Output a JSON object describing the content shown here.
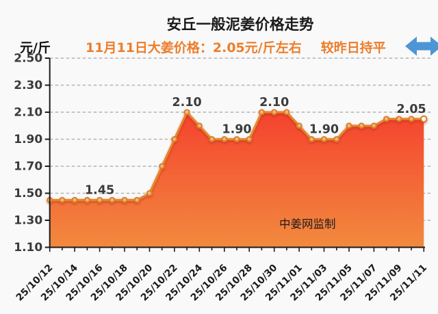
{
  "header": {
    "title": "安丘一般泥姜价格走势",
    "unit_label": "元/斤",
    "subtitle_price": "11月11日大姜价格：2.05元/斤左右",
    "subtitle_trend": "较昨日持平",
    "trend_direction": "flat"
  },
  "watermark": "中姜网监制",
  "colors": {
    "background": "#f8f9f8",
    "subtitle_orange": "#ed7d2b",
    "arrow_blue": "#4e95d5",
    "line_orange": "#e8862c",
    "marker_ring": "#de7c22",
    "marker_fill": "rgba(255,228,200,0.5)",
    "current_marker_fill": "#ffffff",
    "area_top": "#f53a2c",
    "area_bottom": "#f28a3e",
    "gridline": "#b3b3b3",
    "axis": "#1a1a1a",
    "y_tick_label": "#3a3a3a",
    "x_tick_label": "#1b1b1b",
    "data_label": "#3b3b3b",
    "watermark_color": "#1d1d1d"
  },
  "chart_data": {
    "type": "area",
    "title": "安丘一般泥姜价格走势",
    "ylabel": "元/斤",
    "xlabel": "",
    "legend": "none",
    "grid": "dashed-horizontal",
    "ylim": [
      1.1,
      2.5
    ],
    "yticks": [
      2.5,
      2.3,
      2.1,
      1.9,
      1.7,
      1.5,
      1.3,
      1.1
    ],
    "x_tick_every": 2,
    "x": [
      "25/10/12",
      "25/10/13",
      "25/10/14",
      "25/10/15",
      "25/10/16",
      "25/10/17",
      "25/10/18",
      "25/10/19",
      "25/10/20",
      "25/10/21",
      "25/10/22",
      "25/10/23",
      "25/10/24",
      "25/10/25",
      "25/10/26",
      "25/10/27",
      "25/10/28",
      "25/10/29",
      "25/10/30",
      "25/10/31",
      "25/11/01",
      "25/11/02",
      "25/11/03",
      "25/11/04",
      "25/11/05",
      "25/11/06",
      "25/11/07",
      "25/11/08",
      "25/11/09",
      "25/11/10",
      "25/11/11"
    ],
    "values": [
      1.45,
      1.45,
      1.45,
      1.45,
      1.45,
      1.45,
      1.45,
      1.45,
      1.5,
      1.7,
      1.9,
      2.1,
      2.0,
      1.9,
      1.9,
      1.9,
      1.9,
      2.1,
      2.1,
      2.1,
      2.0,
      1.9,
      1.9,
      1.9,
      2.0,
      2.0,
      2.0,
      2.05,
      2.05,
      2.05,
      2.05
    ],
    "point_labels": [
      {
        "index": 4,
        "text": "1.45"
      },
      {
        "index": 11,
        "text": "2.10"
      },
      {
        "index": 15,
        "text": "1.90"
      },
      {
        "index": 18,
        "text": "2.10"
      },
      {
        "index": 22,
        "text": "1.90"
      },
      {
        "index": 29,
        "text": "2.05"
      }
    ]
  }
}
